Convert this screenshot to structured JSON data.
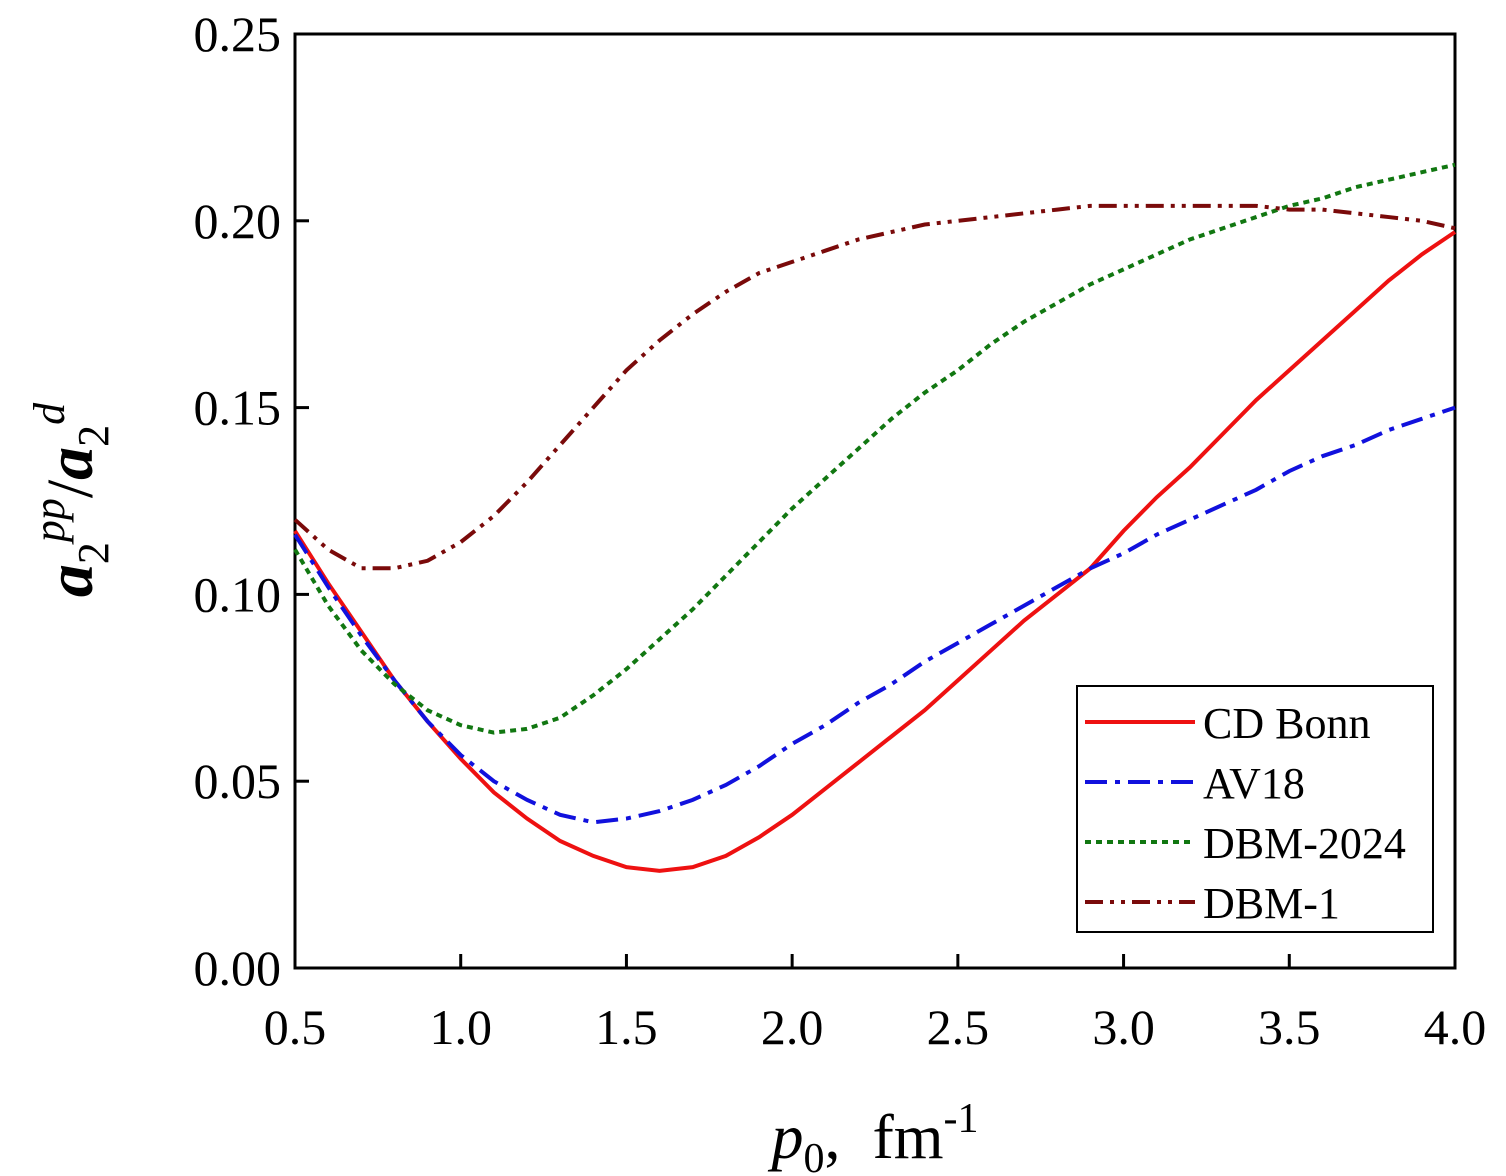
{
  "chart_data": {
    "type": "line",
    "xlabel": [
      "p",
      "0",
      ",  fm",
      "-1"
    ],
    "ylabel": [
      "a",
      "2",
      "pp",
      "/",
      "a",
      "2",
      "d"
    ],
    "x": [
      0.5,
      0.6,
      0.7,
      0.8,
      0.9,
      1.0,
      1.1,
      1.2,
      1.3,
      1.4,
      1.5,
      1.6,
      1.7,
      1.8,
      1.9,
      2.0,
      2.1,
      2.2,
      2.3,
      2.4,
      2.5,
      2.6,
      2.7,
      2.8,
      2.9,
      3.0,
      3.1,
      3.2,
      3.3,
      3.4,
      3.5,
      3.6,
      3.7,
      3.8,
      3.9,
      4.0
    ],
    "series": [
      {
        "name": "CD Bonn",
        "color": "#ee1111",
        "dash": "solid",
        "values": [
          0.117,
          0.103,
          0.09,
          0.077,
          0.066,
          0.056,
          0.047,
          0.04,
          0.034,
          0.03,
          0.027,
          0.026,
          0.027,
          0.03,
          0.035,
          0.041,
          0.048,
          0.055,
          0.062,
          0.069,
          0.077,
          0.085,
          0.093,
          0.1,
          0.107,
          0.117,
          0.126,
          0.134,
          0.143,
          0.152,
          0.16,
          0.168,
          0.176,
          0.184,
          0.191,
          0.197
        ]
      },
      {
        "name": "AV18",
        "color": "#1111dd",
        "dash": "dashdot",
        "values": [
          0.116,
          0.102,
          0.089,
          0.077,
          0.066,
          0.057,
          0.05,
          0.045,
          0.041,
          0.039,
          0.04,
          0.042,
          0.045,
          0.049,
          0.054,
          0.06,
          0.065,
          0.071,
          0.076,
          0.082,
          0.087,
          0.092,
          0.097,
          0.102,
          0.107,
          0.111,
          0.116,
          0.12,
          0.124,
          0.128,
          0.133,
          0.137,
          0.14,
          0.144,
          0.147,
          0.15
        ]
      },
      {
        "name": "DBM-2024",
        "color": "#117711",
        "dash": "dot",
        "values": [
          0.112,
          0.097,
          0.085,
          0.076,
          0.069,
          0.065,
          0.063,
          0.064,
          0.067,
          0.073,
          0.08,
          0.088,
          0.096,
          0.105,
          0.114,
          0.123,
          0.131,
          0.139,
          0.147,
          0.154,
          0.16,
          0.167,
          0.173,
          0.178,
          0.183,
          0.187,
          0.191,
          0.195,
          0.198,
          0.201,
          0.204,
          0.206,
          0.209,
          0.211,
          0.213,
          0.215
        ]
      },
      {
        "name": "DBM-1",
        "color": "#7a0a0a",
        "dash": "dashdotdot",
        "values": [
          0.12,
          0.112,
          0.107,
          0.107,
          0.109,
          0.114,
          0.121,
          0.13,
          0.14,
          0.15,
          0.16,
          0.168,
          0.175,
          0.181,
          0.186,
          0.189,
          0.192,
          0.195,
          0.197,
          0.199,
          0.2,
          0.201,
          0.202,
          0.203,
          0.204,
          0.204,
          0.204,
          0.204,
          0.204,
          0.204,
          0.203,
          0.203,
          0.202,
          0.201,
          0.2,
          0.198
        ]
      }
    ],
    "xlim": [
      0.5,
      4.0
    ],
    "xticks": [
      0.5,
      {
        "value": 1.0,
        "label": "1.0"
      },
      1.5,
      {
        "value": 2.0,
        "label": "2.0"
      },
      2.5,
      {
        "value": 3.0,
        "label": "3.0"
      },
      3.5,
      {
        "value": 4.0,
        "label": "4.0"
      }
    ],
    "ylim": [
      0,
      0.25
    ],
    "yticks": [
      {
        "value": 0,
        "label": "0.00"
      },
      0.05,
      {
        "value": 0.1,
        "label": "0.10"
      },
      0.15,
      {
        "value": 0.2,
        "label": "0.20"
      },
      0.25
    ],
    "grid": false,
    "legend": "lower-right"
  }
}
